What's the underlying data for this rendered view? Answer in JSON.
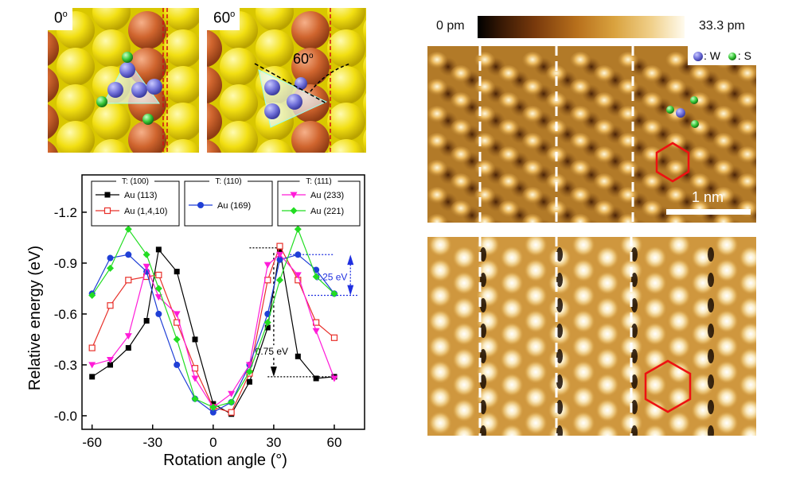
{
  "atom_panels": [
    {
      "angle_label": "0",
      "degree_symbol": "o"
    },
    {
      "angle_label": "60",
      "degree_symbol": "o",
      "annotation": "60",
      "annotation_degree": "o"
    }
  ],
  "chart_data": {
    "type": "line",
    "xlabel": "Rotation angle (°)",
    "ylabel": "Relative energy (eV)",
    "xlim": [
      -65,
      75
    ],
    "ylim": [
      0.08,
      -1.42
    ],
    "xticks": [
      -60,
      -30,
      0,
      30,
      60
    ],
    "xtick_labels": [
      "-60",
      "-30",
      "0",
      "30",
      "60"
    ],
    "yticks": [
      0,
      -0.3,
      -0.6,
      -0.9,
      -1.2
    ],
    "ytick_labels": [
      "-0.0",
      "-0.3",
      "-0.6",
      "-0.9",
      "-1.2"
    ],
    "x": [
      -60,
      -51,
      -42,
      -33,
      -27,
      -18,
      -9,
      0,
      9,
      18,
      27,
      33,
      42,
      51,
      60
    ],
    "legend_groups": [
      {
        "title": "T: (100)",
        "entries": [
          "Au (113)",
          "Au (1,4,10)"
        ]
      },
      {
        "title": "T: (110)",
        "entries": [
          "Au (169)"
        ]
      },
      {
        "title": "T: (111)",
        "entries": [
          "Au (233)",
          "Au (221)"
        ]
      }
    ],
    "series": [
      {
        "name": "Au (113)",
        "color": "#000000",
        "marker": "square-filled",
        "values": [
          -0.23,
          -0.3,
          -0.4,
          -0.56,
          -0.98,
          -0.85,
          -0.45,
          -0.07,
          -0.01,
          -0.2,
          -0.52,
          -0.98,
          -0.35,
          -0.22,
          -0.23
        ]
      },
      {
        "name": "Au (1,4,10)",
        "color": "#e8302a",
        "marker": "square-open",
        "values": [
          -0.4,
          -0.65,
          -0.8,
          -0.82,
          -0.83,
          -0.55,
          -0.28,
          -0.05,
          -0.02,
          -0.25,
          -0.8,
          -1.0,
          -0.8,
          -0.55,
          -0.46
        ]
      },
      {
        "name": "Au (169)",
        "color": "#1f3fd6",
        "marker": "circle-filled",
        "values": [
          -0.72,
          -0.93,
          -0.95,
          -0.85,
          -0.6,
          -0.3,
          -0.1,
          -0.02,
          -0.08,
          -0.3,
          -0.6,
          -0.92,
          -0.95,
          -0.86,
          -0.72
        ]
      },
      {
        "name": "Au (233)",
        "color": "#ff1cd8",
        "marker": "triangle-down-filled",
        "values": [
          -0.3,
          -0.33,
          -0.47,
          -0.88,
          -0.7,
          -0.6,
          -0.22,
          -0.05,
          -0.13,
          -0.3,
          -0.89,
          -0.95,
          -0.83,
          -0.5,
          -0.22
        ]
      },
      {
        "name": "Au (221)",
        "color": "#22dd22",
        "marker": "diamond-filled",
        "values": [
          -0.71,
          -0.87,
          -1.1,
          -0.95,
          -0.75,
          -0.45,
          -0.1,
          -0.05,
          -0.08,
          -0.26,
          -0.55,
          -0.8,
          -1.1,
          -0.82,
          -0.72
        ]
      }
    ],
    "annotations": [
      {
        "text": "0.25 eV",
        "color": "#2030e0"
      },
      {
        "text": "0.75 eV",
        "color": "#000000"
      }
    ]
  },
  "stm": {
    "colorbar_min": "0 pm",
    "colorbar_max": "33.3 pm",
    "legend_w": ": W",
    "legend_s": ": S",
    "scalebar_label": "1 nm"
  }
}
